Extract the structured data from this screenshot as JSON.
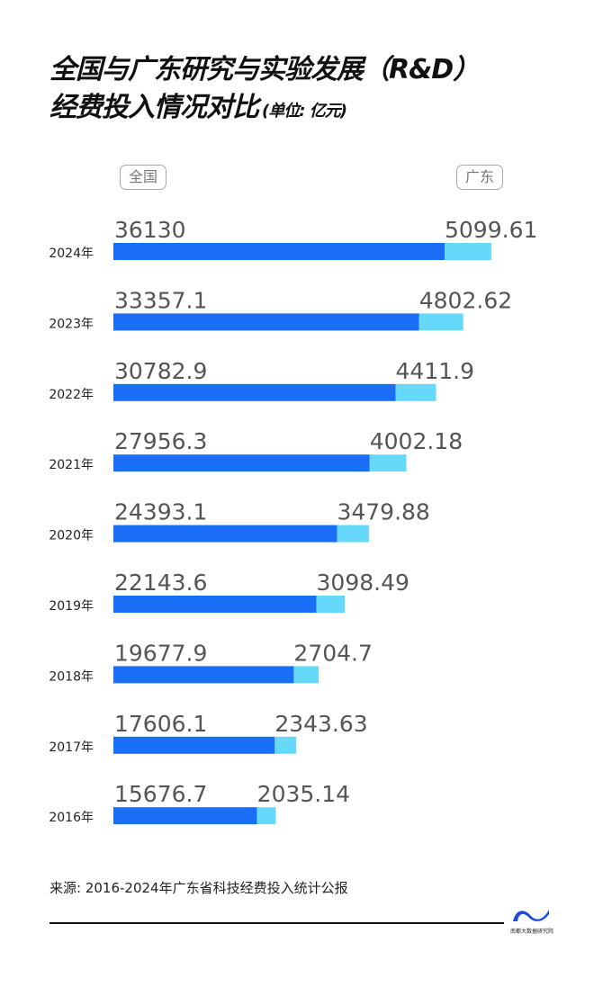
{
  "title_line1": "全国与广东研究与实验发展（R&D）",
  "title_line2": "经费投入情况对比",
  "unit": "(单位: 亿元)",
  "source": "来源: 2016-2024年广东省科技经费投入统计公报",
  "logo_text": "南都大数据研究院",
  "colors": {
    "national": "#1a6ef5",
    "guangdong": "#66d9fb"
  },
  "chart_data": {
    "type": "bar",
    "orientation": "horizontal",
    "stacked": true,
    "title": "全国与广东研究与实验发展（R&D）经费投入情况对比",
    "unit": "亿元",
    "legend": [
      "全国",
      "广东"
    ],
    "legend_placement": "top",
    "categories": [
      "2024年",
      "2023年",
      "2022年",
      "2021年",
      "2020年",
      "2019年",
      "2018年",
      "2017年",
      "2016年"
    ],
    "series": [
      {
        "name": "全国",
        "values": [
          36130,
          33357.1,
          30782.9,
          27956.3,
          24393.1,
          22143.6,
          19677.9,
          17606.1,
          15676.7
        ],
        "labels": [
          "36130",
          "33357.1",
          "30782.9",
          "27956.3",
          "24393.1",
          "22143.6",
          "19677.9",
          "17606.1",
          "15676.7"
        ]
      },
      {
        "name": "广东",
        "values": [
          5099.61,
          4802.62,
          4411.9,
          4002.18,
          3479.88,
          3098.49,
          2704.7,
          2343.63,
          2035.14
        ],
        "labels": [
          "5099.61",
          "4802.62",
          "4411.9",
          "4002.18",
          "3479.88",
          "3098.49",
          "2704.7",
          "2343.63",
          "2035.14"
        ]
      }
    ]
  }
}
